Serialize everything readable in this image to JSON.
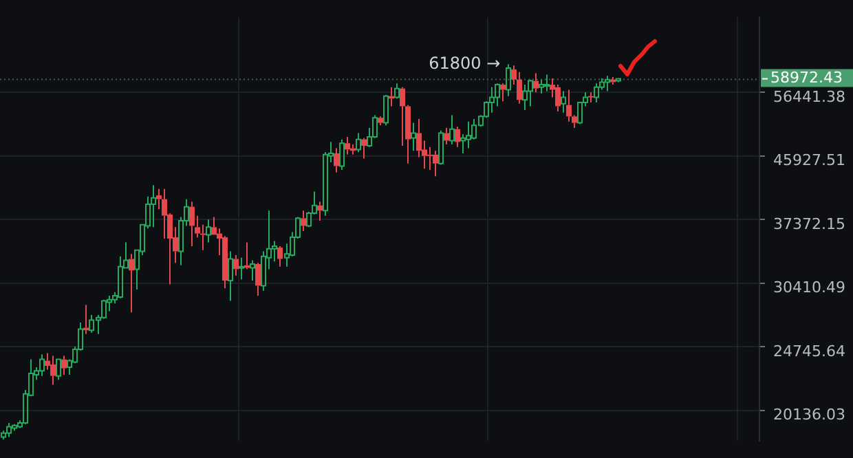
{
  "chart_data": {
    "type": "candlestick",
    "categories": [
      null,
      null,
      null,
      null,
      null,
      null,
      null,
      null,
      null,
      null,
      null,
      null,
      null,
      null,
      null,
      null,
      null,
      null,
      null,
      null,
      null,
      null,
      null,
      null,
      null,
      null,
      null,
      null,
      null,
      null,
      null,
      null,
      null,
      null,
      null,
      null,
      null,
      null,
      null,
      null,
      null,
      null,
      null,
      null,
      null,
      null,
      null,
      null,
      null,
      null,
      null,
      null,
      null,
      null,
      null,
      null,
      null,
      null,
      null,
      null,
      null,
      null,
      null,
      null,
      null,
      null,
      null,
      null,
      null,
      null,
      null,
      null,
      null,
      null,
      null,
      null,
      null,
      null,
      null,
      null,
      null,
      null,
      null,
      null,
      null,
      null,
      null,
      null,
      null,
      null,
      null,
      null,
      null,
      null,
      null,
      null,
      null,
      null,
      null,
      null,
      null,
      null,
      null,
      null,
      null,
      null,
      null,
      null,
      null,
      null,
      null,
      null,
      null,
      null,
      null,
      null,
      null,
      null,
      null,
      null,
      null,
      null,
      null,
      null,
      null,
      null,
      null,
      null,
      null,
      null,
      null,
      null,
      null,
      null,
      null,
      null,
      null
    ],
    "ohlc": [
      [
        18470,
        18850,
        18320,
        18700
      ],
      [
        18700,
        19330,
        18470,
        19090
      ],
      [
        19010,
        19250,
        18850,
        19170
      ],
      [
        19090,
        19490,
        19010,
        19330
      ],
      [
        19330,
        21510,
        19250,
        21240
      ],
      [
        21150,
        23750,
        21070,
        22700
      ],
      [
        22600,
        23160,
        22230,
        22880
      ],
      [
        22880,
        24140,
        22510,
        23750
      ],
      [
        23650,
        24240,
        22980,
        23260
      ],
      [
        23360,
        24040,
        21870,
        22510
      ],
      [
        22510,
        23750,
        22230,
        23750
      ],
      [
        23750,
        24040,
        22600,
        23070
      ],
      [
        23160,
        23750,
        22600,
        23650
      ],
      [
        23550,
        24750,
        23460,
        24540
      ],
      [
        24540,
        26760,
        24440,
        26210
      ],
      [
        26320,
        28350,
        25790,
        26100
      ],
      [
        26100,
        27430,
        25900,
        26980
      ],
      [
        26980,
        27430,
        25790,
        27200
      ],
      [
        27200,
        28830,
        27090,
        28710
      ],
      [
        28590,
        29190,
        27770,
        28830
      ],
      [
        28830,
        29540,
        28470,
        29190
      ],
      [
        29070,
        33160,
        28950,
        32080
      ],
      [
        31950,
        34710,
        31950,
        32750
      ],
      [
        32890,
        33430,
        27660,
        31690
      ],
      [
        31820,
        33850,
        29790,
        33850
      ],
      [
        33710,
        36760,
        33300,
        36760
      ],
      [
        36610,
        40260,
        36310,
        39270
      ],
      [
        39270,
        41770,
        36460,
        40090
      ],
      [
        40420,
        41260,
        38630,
        39920
      ],
      [
        39920,
        41260,
        35130,
        37840
      ],
      [
        37990,
        38150,
        30290,
        35130
      ],
      [
        35280,
        36460,
        32480,
        33710
      ],
      [
        33710,
        37680,
        32220,
        37220
      ],
      [
        37220,
        39920,
        36610,
        38950
      ],
      [
        38950,
        39600,
        34280,
        36610
      ],
      [
        36460,
        37840,
        35270,
        35720
      ],
      [
        35720,
        36760,
        33850,
        35570
      ],
      [
        35570,
        37370,
        34700,
        36460
      ],
      [
        36460,
        37680,
        35570,
        35570
      ],
      [
        35720,
        36310,
        33300,
        35130
      ],
      [
        35280,
        35420,
        29910,
        30660
      ],
      [
        30660,
        33710,
        28710,
        32890
      ],
      [
        32890,
        33300,
        31170,
        31820
      ],
      [
        31950,
        33020,
        30790,
        32080
      ],
      [
        32220,
        34700,
        31820,
        31950
      ],
      [
        31950,
        32750,
        30660,
        32350
      ],
      [
        32350,
        32480,
        29190,
        30160
      ],
      [
        30160,
        33710,
        29670,
        33160
      ],
      [
        33020,
        38470,
        31820,
        33990
      ],
      [
        33990,
        34850,
        32620,
        34280
      ],
      [
        34130,
        34280,
        32080,
        32890
      ],
      [
        33020,
        34560,
        32080,
        33430
      ],
      [
        33300,
        35870,
        33160,
        35280
      ],
      [
        35280,
        37680,
        35130,
        37530
      ],
      [
        37530,
        38470,
        36010,
        36610
      ],
      [
        36610,
        38310,
        36460,
        38150
      ],
      [
        38150,
        40920,
        37990,
        39110
      ],
      [
        39110,
        39600,
        37220,
        38470
      ],
      [
        38470,
        46500,
        37840,
        46120
      ],
      [
        45930,
        48060,
        45000,
        46310
      ],
      [
        46310,
        47080,
        43540,
        44440
      ],
      [
        44440,
        48460,
        43900,
        47860
      ],
      [
        47860,
        48860,
        46120,
        46890
      ],
      [
        47080,
        47660,
        46120,
        46700
      ],
      [
        46890,
        49460,
        46500,
        48460
      ],
      [
        48460,
        48660,
        45550,
        47460
      ],
      [
        47460,
        50300,
        47270,
        48860
      ],
      [
        48860,
        52410,
        48660,
        51980
      ],
      [
        51980,
        52200,
        50710,
        51130
      ],
      [
        51130,
        55970,
        50710,
        55750
      ],
      [
        55760,
        57380,
        53950,
        55300
      ],
      [
        55530,
        58090,
        55300,
        57150
      ],
      [
        57150,
        57380,
        47460,
        53950
      ],
      [
        53950,
        54170,
        44810,
        48460
      ],
      [
        48660,
        51130,
        46700,
        49460
      ],
      [
        49460,
        51770,
        45740,
        46700
      ],
      [
        46890,
        48260,
        44080,
        45930
      ],
      [
        46120,
        47270,
        43900,
        45930
      ],
      [
        46120,
        46700,
        43000,
        44810
      ],
      [
        44810,
        49880,
        44630,
        49460
      ],
      [
        49460,
        50300,
        47660,
        48260
      ],
      [
        48260,
        52410,
        47660,
        50090
      ],
      [
        50090,
        50500,
        47270,
        48060
      ],
      [
        48260,
        49260,
        46310,
        48660
      ],
      [
        48460,
        51340,
        47080,
        49060
      ],
      [
        48660,
        51770,
        48460,
        50710
      ],
      [
        50710,
        52410,
        50500,
        52200
      ],
      [
        52200,
        54840,
        51980,
        54620
      ],
      [
        54620,
        57380,
        52840,
        55530
      ],
      [
        55530,
        58090,
        53950,
        57860
      ],
      [
        57860,
        58090,
        54840,
        56910
      ],
      [
        56910,
        61800,
        55760,
        61050
      ],
      [
        60790,
        61550,
        57860,
        58820
      ],
      [
        58820,
        60290,
        54390,
        55070
      ],
      [
        55070,
        57860,
        53280,
        56670
      ],
      [
        56670,
        58820,
        53950,
        58580
      ],
      [
        58580,
        60040,
        56440,
        57150
      ],
      [
        57380,
        58820,
        56210,
        57860
      ],
      [
        57620,
        59790,
        56670,
        57860
      ],
      [
        57860,
        59060,
        55530,
        56910
      ],
      [
        57380,
        57860,
        53060,
        53950
      ],
      [
        54390,
        56670,
        52840,
        55530
      ],
      [
        54170,
        56910,
        51340,
        52200
      ],
      [
        52200,
        52410,
        50300,
        51130
      ],
      [
        51130,
        54620,
        50920,
        54620
      ],
      [
        54620,
        56440,
        53950,
        55530
      ],
      [
        55760,
        56440,
        54620,
        55530
      ],
      [
        55530,
        58090,
        54620,
        57380
      ],
      [
        57380,
        59060,
        56910,
        58340
      ],
      [
        58340,
        59550,
        56670,
        58820
      ],
      [
        58820,
        59300,
        57860,
        58340
      ],
      [
        58580,
        59060,
        58340,
        58972.43
      ],
      null,
      null,
      null,
      null,
      null,
      null,
      null,
      null,
      null,
      null,
      null,
      null,
      null,
      null,
      null,
      null,
      null,
      null,
      null,
      null,
      null,
      null,
      null,
      null,
      null
    ],
    "colors": [
      "#22ab5e",
      "#22ab5e",
      "#22ab5e",
      "#22ab5e",
      "#22ab5e",
      "#22ab5e",
      "#22ab5e",
      "#22ab5e",
      "#e5484d",
      "#e5484d",
      "#22ab5e",
      "#e5484d",
      "#22ab5e",
      "#22ab5e",
      "#22ab5e",
      "#e5484d",
      "#22ab5e",
      "#22ab5e",
      "#22ab5e",
      "#22ab5e",
      "#22ab5e",
      "#22ab5e",
      "#22ab5e",
      "#e5484d",
      "#22ab5e",
      "#22ab5e",
      "#22ab5e",
      "#22ab5e",
      "#e5484d",
      "#e5484d",
      "#e5484d",
      "#e5484d",
      "#22ab5e",
      "#22ab5e",
      "#e5484d",
      "#e5484d",
      "#e5484d",
      "#22ab5e",
      "#e5484d",
      "#e5484d",
      "#e5484d",
      "#22ab5e",
      "#e5484d",
      "#22ab5e",
      "#e5484d",
      "#22ab5e",
      "#e5484d",
      "#22ab5e",
      "#22ab5e",
      "#22ab5e",
      "#e5484d",
      "#22ab5e",
      "#22ab5e",
      "#22ab5e",
      "#e5484d",
      "#22ab5e",
      "#22ab5e",
      "#e5484d",
      "#22ab5e",
      "#22ab5e",
      "#e5484d",
      "#22ab5e",
      "#e5484d",
      "#e5484d",
      "#22ab5e",
      "#e5484d",
      "#22ab5e",
      "#22ab5e",
      "#e5484d",
      "#22ab5e",
      "#e5484d",
      "#22ab5e",
      "#e5484d",
      "#e5484d",
      "#22ab5e",
      "#e5484d",
      "#e5484d",
      "#e5484d",
      "#e5484d",
      "#22ab5e",
      "#e5484d",
      "#22ab5e",
      "#e5484d",
      "#22ab5e",
      "#22ab5e",
      "#22ab5e",
      "#22ab5e",
      "#22ab5e",
      "#22ab5e",
      "#22ab5e",
      "#e5484d",
      "#22ab5e",
      "#e5484d",
      "#e5484d",
      "#22ab5e",
      "#22ab5e",
      "#e5484d",
      "#22ab5e",
      "#22ab5e",
      "#e5484d",
      "#e5484d",
      "#22ab5e",
      "#e5484d",
      "#e5484d",
      "#22ab5e",
      "#22ab5e",
      "#e5484d",
      "#22ab5e",
      "#22ab5e",
      "#22ab5e",
      "#e5484d",
      "#22ab5e",
      null,
      null,
      null,
      null,
      null,
      null,
      null,
      null,
      null,
      null,
      null,
      null,
      null,
      null,
      null,
      null,
      null,
      null,
      null,
      null,
      null,
      null,
      null,
      null,
      null
    ],
    "log": true,
    "ylim": [
      18250,
      71970
    ],
    "yticks": [
      20136.03,
      24745.64,
      30410.49,
      37372.15,
      45927.51,
      56441.38
    ],
    "grid": true,
    "tick_labels": "y",
    "annotations": [
      "61800 →"
    ],
    "ref_lines": [
      {
        "axis": "y",
        "value": 58972.43,
        "label": "58972.43",
        "color": "#4a9f6e"
      }
    ]
  }
}
